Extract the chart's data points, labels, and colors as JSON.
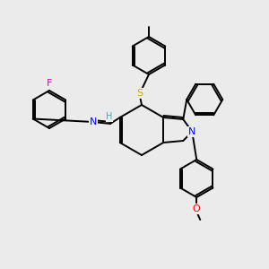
{
  "background_color": "#ebebeb",
  "bond_color": "#000000",
  "atoms": {
    "F": {
      "color": "#cc00cc"
    },
    "N": {
      "color": "#0000ff"
    },
    "S": {
      "color": "#ccaa00"
    },
    "O": {
      "color": "#ff0000"
    },
    "H": {
      "color": "#44aaaa"
    }
  },
  "figsize": [
    3.0,
    3.0
  ],
  "dpi": 100
}
